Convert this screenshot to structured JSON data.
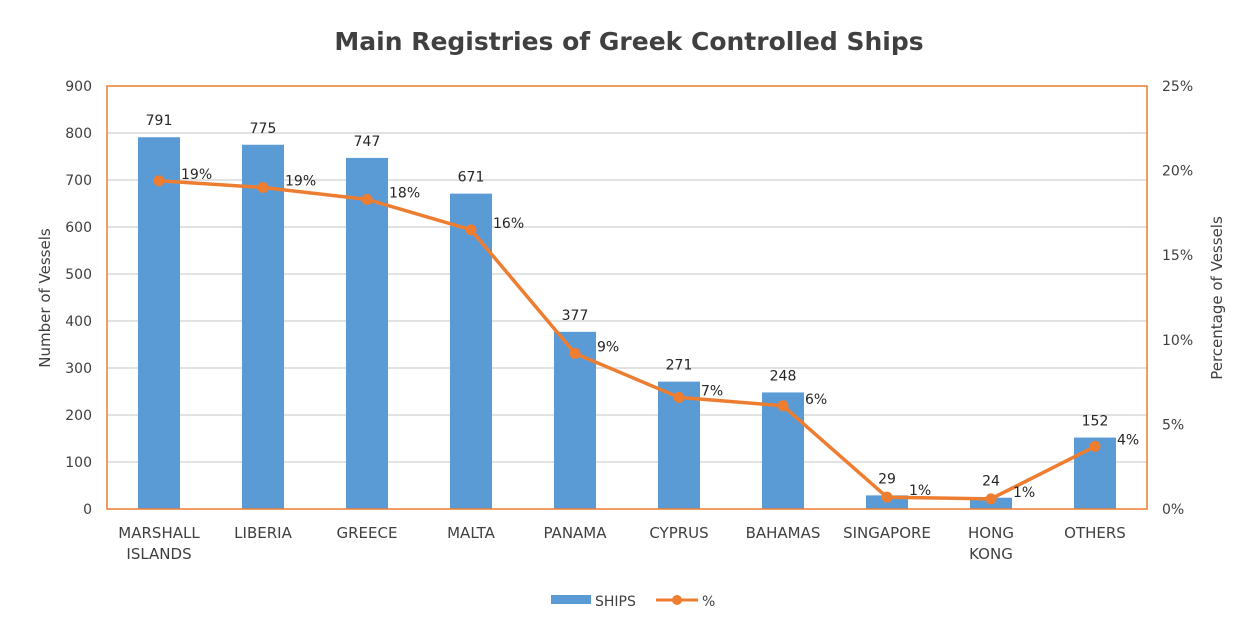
{
  "chart_data": {
    "type": "bar+line",
    "title": "Main Registries of Greek Controlled Ships",
    "categories": [
      [
        "MARSHALL",
        "ISLANDS"
      ],
      [
        "LIBERIA"
      ],
      [
        "GREECE"
      ],
      [
        "MALTA"
      ],
      [
        "PANAMA"
      ],
      [
        "CYPRUS"
      ],
      [
        "BAHAMAS"
      ],
      [
        "SINGAPORE"
      ],
      [
        "HONG",
        "KONG"
      ],
      [
        "OTHERS"
      ]
    ],
    "series": [
      {
        "name": "SHIPS",
        "type": "bar",
        "axis": "left",
        "color": "#5B9BD5",
        "values": [
          791,
          775,
          747,
          671,
          377,
          271,
          248,
          29,
          24,
          152
        ],
        "labels": [
          "791",
          "775",
          "747",
          "671",
          "377",
          "271",
          "248",
          "29",
          "24",
          "152"
        ]
      },
      {
        "name": "%",
        "type": "line",
        "axis": "right",
        "color": "#ED7D31",
        "values": [
          19.4,
          19.0,
          18.3,
          16.5,
          9.2,
          6.6,
          6.1,
          0.7,
          0.6,
          3.7
        ],
        "labels": [
          "19%",
          "19%",
          "18%",
          "16%",
          "9%",
          "7%",
          "6%",
          "1%",
          "1%",
          "4%"
        ]
      }
    ],
    "ylabel": "Number of Vessels",
    "ylim": [
      0,
      900
    ],
    "yticks": [
      "0",
      "100",
      "200",
      "300",
      "400",
      "500",
      "600",
      "700",
      "800",
      "900"
    ],
    "y2label": "Percentage of Vessels",
    "y2lim": [
      0,
      25
    ],
    "y2ticks": [
      "0%",
      "5%",
      "10%",
      "15%",
      "20%",
      "25%"
    ],
    "grid": true,
    "legend_position": "bottom"
  }
}
